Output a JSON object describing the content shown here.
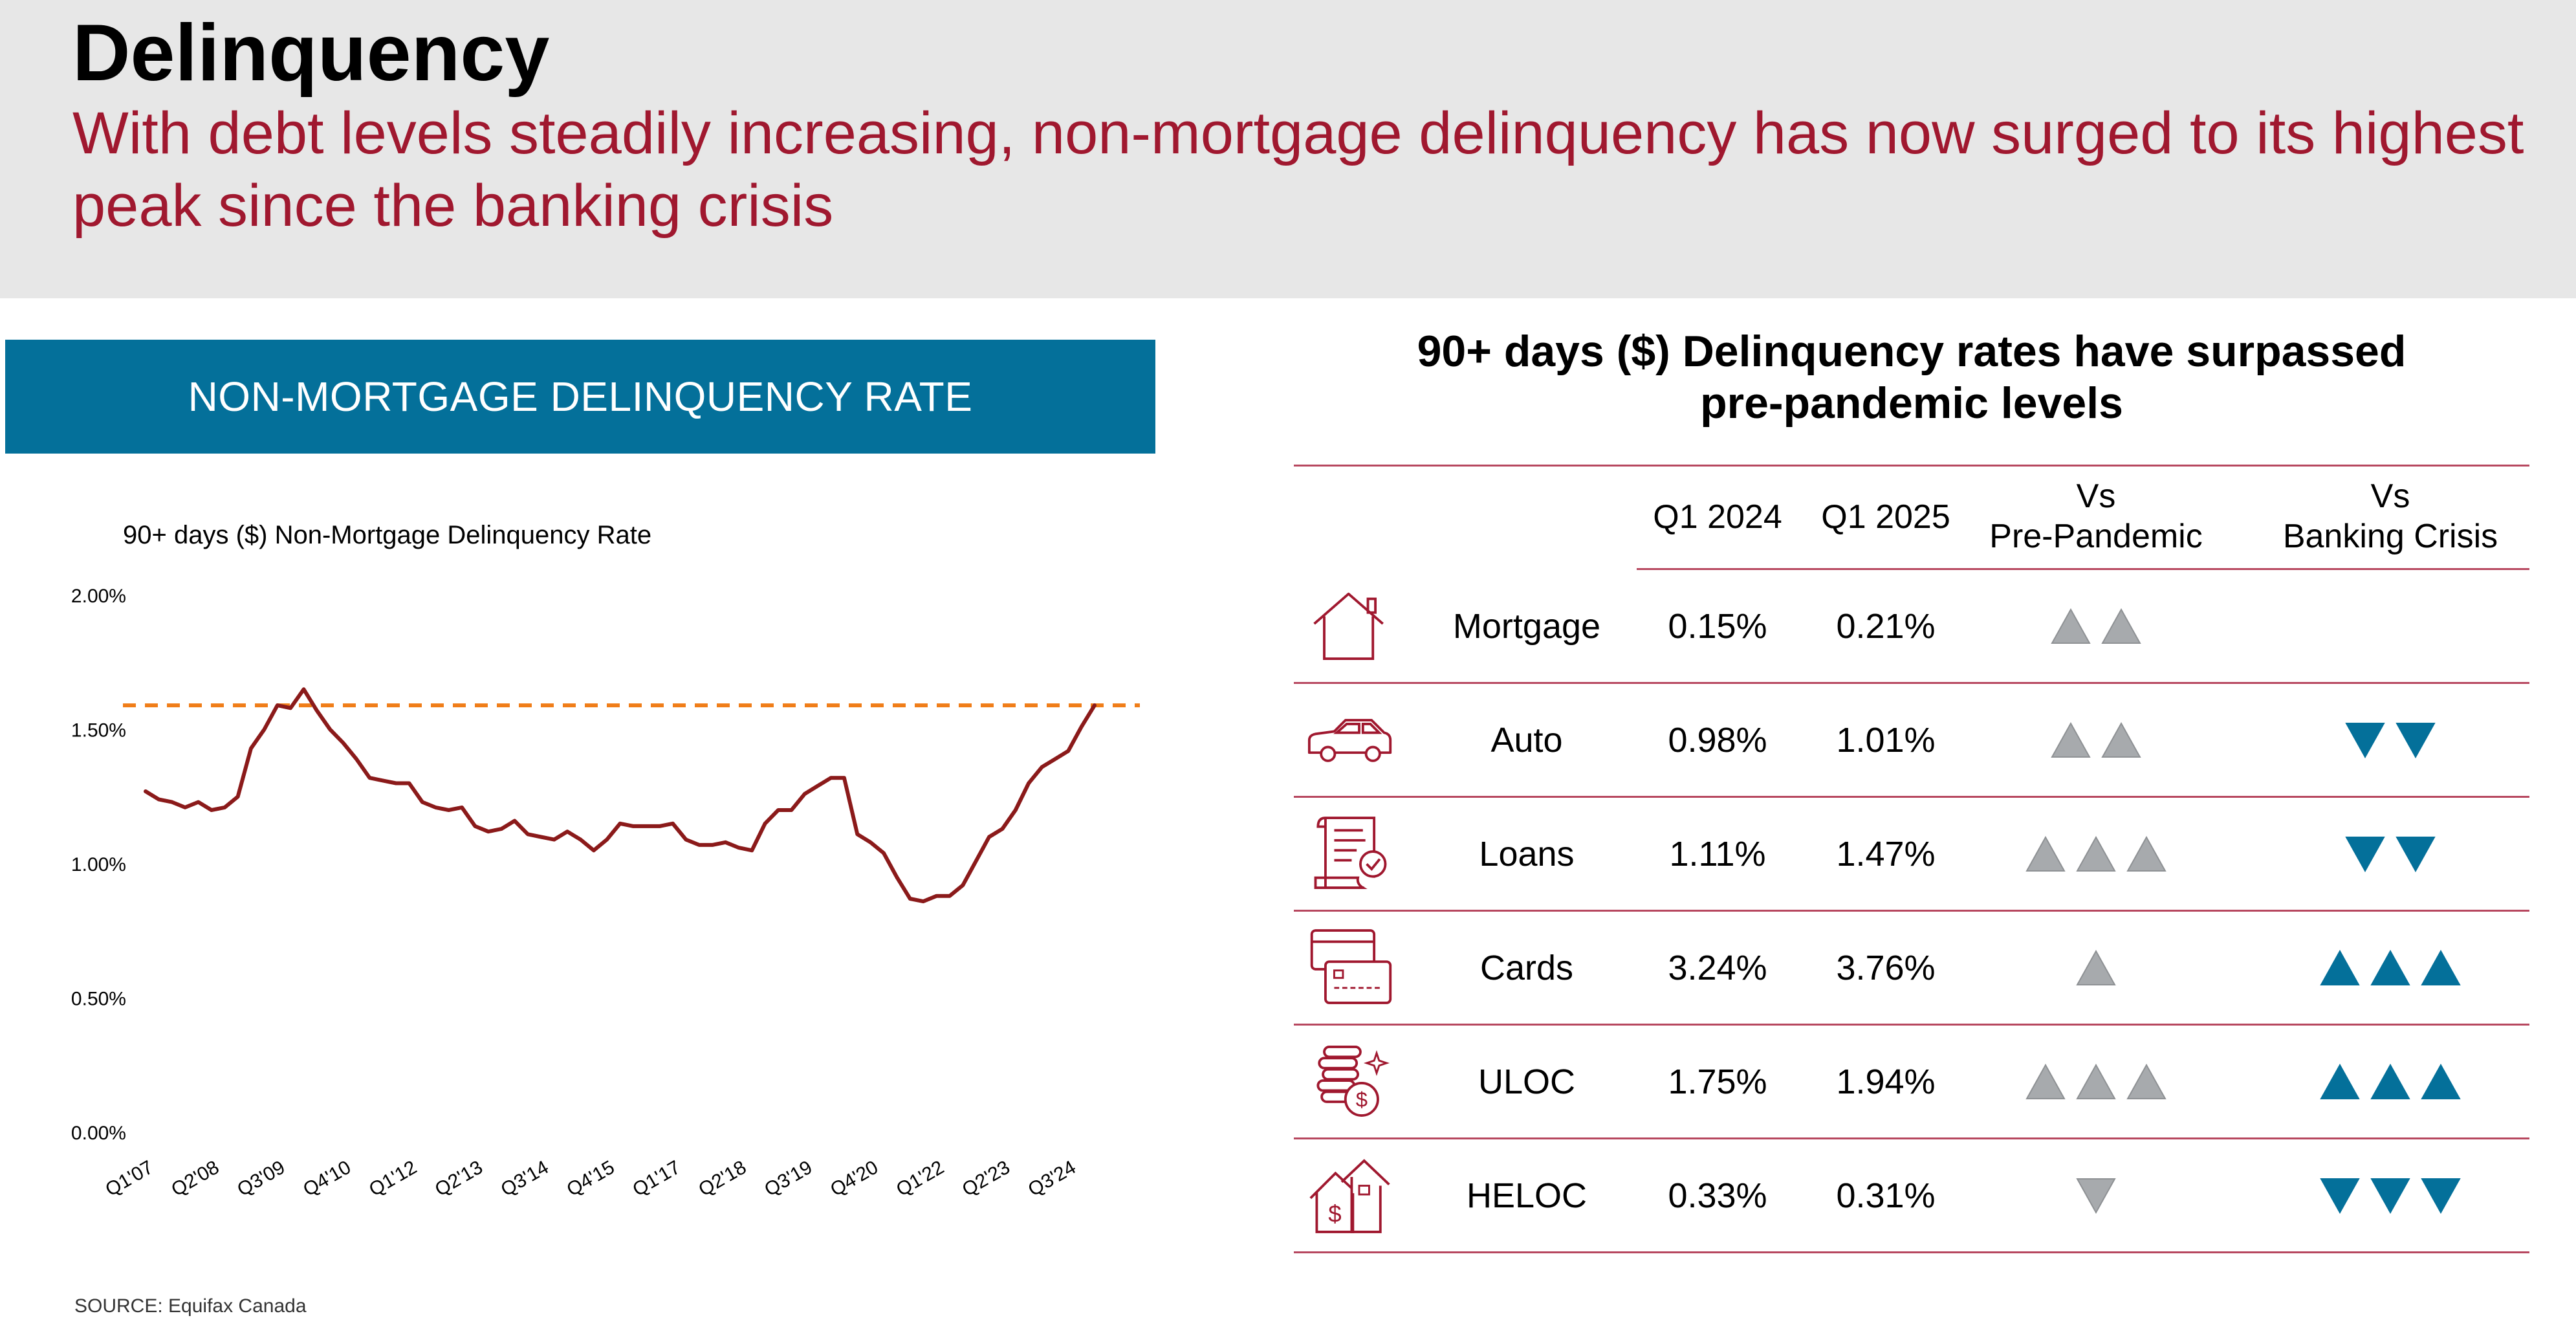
{
  "header": {
    "title": "Delinquency",
    "subtitle": "With debt levels steadily increasing, non-mortgage delinquency has now surged to its highest peak since the banking crisis"
  },
  "left_panel": {
    "banner": "NON-MORTGAGE DELINQUENCY RATE",
    "source": "SOURCE: Equifax Canada"
  },
  "colors": {
    "header_bg": "#e7e7e7",
    "accent_red": "#a0182f",
    "banner_blue": "#04709a",
    "line": "#8b1a1a",
    "dash": "#f07d18",
    "gray_arrow": "#a7aaad",
    "blue_arrow": "#04709a"
  },
  "chart_data": {
    "type": "line",
    "title": "90+ days ($) Non-Mortgage Delinquency Rate",
    "xlabel": "",
    "ylabel": "",
    "ylim": [
      0,
      2.0
    ],
    "yticks": [
      "2.00%",
      "1.50%",
      "1.00%",
      "0.50%",
      "0.00%"
    ],
    "ytick_values": [
      2.0,
      1.5,
      1.0,
      0.5,
      0.0
    ],
    "x_tick_labels": [
      "Q1'07",
      "Q2'08",
      "Q3'09",
      "Q4'10",
      "Q1'12",
      "Q2'13",
      "Q3'14",
      "Q4'15",
      "Q1'17",
      "Q2'18",
      "Q3'19",
      "Q4'20",
      "Q1'22",
      "Q2'23",
      "Q3'24"
    ],
    "x_tick_every": 5,
    "series": [
      {
        "name": "90+ days ($) Non-Mortgage Delinquency Rate",
        "values": [
          1.27,
          1.24,
          1.23,
          1.21,
          1.23,
          1.2,
          1.21,
          1.25,
          1.43,
          1.5,
          1.59,
          1.58,
          1.65,
          1.57,
          1.5,
          1.45,
          1.39,
          1.32,
          1.31,
          1.3,
          1.3,
          1.23,
          1.21,
          1.2,
          1.21,
          1.14,
          1.12,
          1.13,
          1.16,
          1.11,
          1.1,
          1.09,
          1.12,
          1.09,
          1.05,
          1.09,
          1.15,
          1.14,
          1.14,
          1.14,
          1.15,
          1.09,
          1.07,
          1.07,
          1.08,
          1.06,
          1.05,
          1.15,
          1.2,
          1.2,
          1.26,
          1.29,
          1.32,
          1.32,
          1.11,
          1.08,
          1.04,
          0.95,
          0.87,
          0.86,
          0.88,
          0.88,
          0.92,
          1.01,
          1.1,
          1.13,
          1.2,
          1.3,
          1.36,
          1.39,
          1.42,
          1.51,
          1.59
        ]
      }
    ],
    "reference_line": {
      "value": 1.59,
      "style": "dashed"
    }
  },
  "right_panel": {
    "title_line1": "90+ days ($) Delinquency rates have surpassed",
    "title_line2": "pre-pandemic levels",
    "headers": {
      "q1_2024": "Q1 2024",
      "q1_2025": "Q1 2025",
      "vs_pre_l1": "Vs",
      "vs_pre_l2": "Pre-Pandemic",
      "vs_bank_l1": "Vs",
      "vs_bank_l2": "Banking Crisis"
    },
    "rows": [
      {
        "icon": "house-icon",
        "label": "Mortgage",
        "q1_2024": "0.15%",
        "q1_2025": "0.21%",
        "pre_pandemic": {
          "direction": "up",
          "count": 2,
          "color": "gray"
        },
        "banking_crisis": {
          "direction": "none",
          "count": 0,
          "color": "blue"
        }
      },
      {
        "icon": "car-icon",
        "label": "Auto",
        "q1_2024": "0.98%",
        "q1_2025": "1.01%",
        "pre_pandemic": {
          "direction": "up",
          "count": 2,
          "color": "gray"
        },
        "banking_crisis": {
          "direction": "down",
          "count": 2,
          "color": "blue"
        }
      },
      {
        "icon": "loan-document-icon",
        "label": "Loans",
        "q1_2024": "1.11%",
        "q1_2025": "1.47%",
        "pre_pandemic": {
          "direction": "up",
          "count": 3,
          "color": "gray"
        },
        "banking_crisis": {
          "direction": "down",
          "count": 2,
          "color": "blue"
        }
      },
      {
        "icon": "credit-cards-icon",
        "label": "Cards",
        "q1_2024": "3.24%",
        "q1_2025": "3.76%",
        "pre_pandemic": {
          "direction": "up",
          "count": 1,
          "color": "gray"
        },
        "banking_crisis": {
          "direction": "up",
          "count": 3,
          "color": "blue"
        }
      },
      {
        "icon": "coins-icon",
        "label": "ULOC",
        "q1_2024": "1.75%",
        "q1_2025": "1.94%",
        "pre_pandemic": {
          "direction": "up",
          "count": 3,
          "color": "gray"
        },
        "banking_crisis": {
          "direction": "up",
          "count": 3,
          "color": "blue"
        }
      },
      {
        "icon": "house-dollar-icon",
        "label": "HELOC",
        "q1_2024": "0.33%",
        "q1_2025": "0.31%",
        "pre_pandemic": {
          "direction": "down",
          "count": 1,
          "color": "gray"
        },
        "banking_crisis": {
          "direction": "down",
          "count": 3,
          "color": "blue"
        }
      }
    ]
  }
}
